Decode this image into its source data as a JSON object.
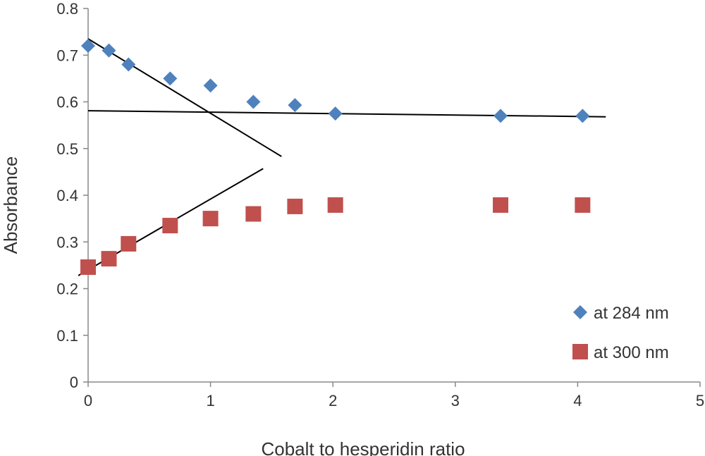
{
  "chart_data": {
    "type": "scatter",
    "xlabel": "Cobalt to hesperidin ratio",
    "ylabel": "Absorbance",
    "xlim": [
      0,
      5
    ],
    "ylim": [
      0,
      0.8
    ],
    "x_ticks": [
      "0",
      "1",
      "2",
      "3",
      "4",
      "5"
    ],
    "y_ticks": [
      "0",
      "0.1",
      "0.2",
      "0.3",
      "0.4",
      "0.5",
      "0.6",
      "0.7",
      "0.8"
    ],
    "grid": false,
    "legend_position": "bottom-right",
    "series": [
      {
        "name": "at 284 nm",
        "marker": "diamond",
        "color": "#4F81BD",
        "x": [
          0,
          0.17,
          0.33,
          0.67,
          1.0,
          1.35,
          1.69,
          2.02,
          3.37,
          4.04
        ],
        "y": [
          0.72,
          0.71,
          0.68,
          0.65,
          0.635,
          0.6,
          0.593,
          0.575,
          0.57,
          0.57
        ]
      },
      {
        "name": "at 300 nm",
        "marker": "square",
        "color": "#C0504D",
        "x": [
          0,
          0.17,
          0.33,
          0.67,
          1.0,
          1.35,
          1.69,
          2.02,
          3.37,
          4.04
        ],
        "y": [
          0.246,
          0.264,
          0.296,
          0.335,
          0.35,
          0.36,
          0.376,
          0.379,
          0.379,
          0.379
        ]
      }
    ],
    "trendlines": [
      {
        "x": [
          0,
          1.58
        ],
        "y": [
          0.735,
          0.483
        ],
        "color": "#000000"
      },
      {
        "x": [
          0,
          4.23
        ],
        "y": [
          0.581,
          0.568
        ],
        "color": "#000000"
      },
      {
        "x": [
          -0.08,
          1.43
        ],
        "y": [
          0.228,
          0.457
        ],
        "color": "#000000"
      }
    ]
  }
}
